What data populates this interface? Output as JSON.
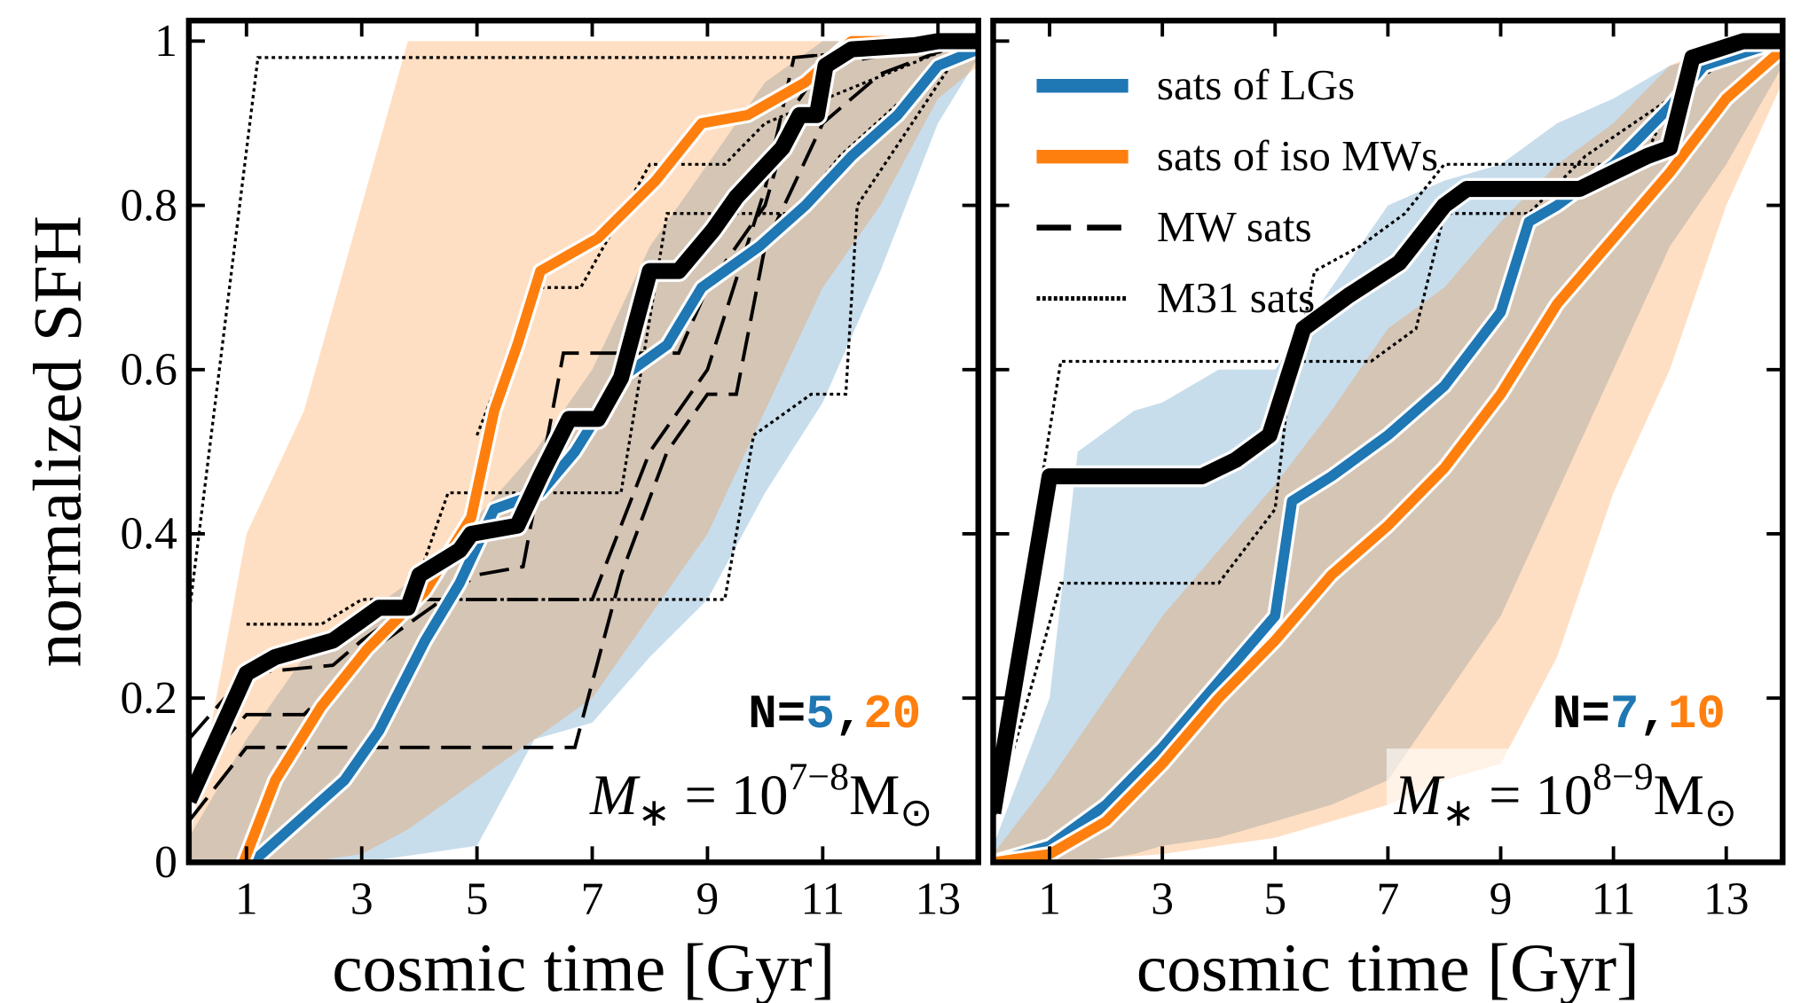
{
  "chart_data": [
    {
      "type": "line",
      "xlabel": "cosmic time [Gyr]",
      "ylabel": "normalized SFH",
      "xlim": [
        0,
        13.7
      ],
      "ylim": [
        0,
        1.025
      ],
      "xticks": [
        1,
        3,
        5,
        7,
        9,
        11,
        13
      ],
      "yticks": [
        0,
        0.2,
        0.4,
        0.6,
        0.8,
        1
      ],
      "show_ytick_labels": true,
      "bands": [
        {
          "color": "#1f77b4",
          "x": [
            0,
            1,
            2,
            3,
            4,
            5,
            6,
            7,
            8,
            9,
            10,
            11,
            12,
            13,
            13.7
          ],
          "lower": [
            0,
            0,
            0,
            0,
            0.01,
            0.02,
            0.15,
            0.17,
            0.25,
            0.32,
            0.45,
            0.56,
            0.72,
            0.9,
            0.98
          ],
          "upper": [
            0.03,
            0.15,
            0.25,
            0.3,
            0.35,
            0.42,
            0.5,
            0.6,
            0.75,
            0.85,
            0.95,
            1,
            1,
            1,
            1
          ]
        },
        {
          "color": "#ff7f0e",
          "x": [
            0,
            1,
            2,
            3,
            3.8,
            4,
            5,
            6,
            7,
            8,
            9,
            10,
            11,
            12,
            13,
            13.7
          ],
          "lower": [
            0,
            0,
            0,
            0.01,
            0.04,
            0.05,
            0.1,
            0.15,
            0.2,
            0.3,
            0.4,
            0.55,
            0.7,
            0.8,
            0.93,
            0.97
          ],
          "upper": [
            0.02,
            0.4,
            0.55,
            0.8,
            1,
            1,
            1,
            1,
            1,
            1,
            1,
            1,
            1,
            1,
            1,
            1
          ]
        }
      ],
      "series": [
        {
          "name": "MW sats",
          "color": "#000000",
          "dash": "dashed",
          "lines": [
            {
              "x": [
                0,
                1,
                6.7,
                7.5,
                8.3,
                9,
                9.5,
                10,
                11,
                12,
                13.5
              ],
              "values": [
                0.05,
                0.14,
                0.14,
                0.35,
                0.5,
                0.57,
                0.57,
                0.75,
                0.9,
                0.96,
                1
              ]
            },
            {
              "x": [
                0,
                1,
                2,
                3,
                4,
                5,
                5.8,
                6.5,
                8.5,
                9,
                10,
                10.5,
                11,
                13.5
              ],
              "values": [
                0.1,
                0.18,
                0.18,
                0.25,
                0.3,
                0.35,
                0.36,
                0.62,
                0.62,
                0.7,
                0.8,
                0.92,
                0.97,
                1
              ]
            },
            {
              "x": [
                0,
                1,
                2.5,
                3,
                4,
                7,
                8,
                9,
                10,
                10.5,
                13.5
              ],
              "values": [
                0.15,
                0.23,
                0.24,
                0.27,
                0.32,
                0.32,
                0.5,
                0.6,
                0.82,
                0.98,
                1
              ]
            }
          ]
        },
        {
          "name": "M31 sats",
          "color": "#000000",
          "dash": "dotted",
          "lines": [
            {
              "x": [
                0,
                1.2,
                10.5,
                13.5
              ],
              "values": [
                0.3,
                0.98,
                0.98,
                1
              ]
            },
            {
              "x": [
                1,
                2.3,
                3,
                9.3,
                9.8,
                10.8,
                11.4,
                11.6,
                13.5
              ],
              "values": [
                0.29,
                0.29,
                0.32,
                0.32,
                0.52,
                0.57,
                0.57,
                0.8,
                1
              ]
            },
            {
              "x": [
                4,
                4.5,
                7.5,
                8.3,
                10.5,
                11.3,
                13.5
              ],
              "values": [
                0.35,
                0.45,
                0.45,
                0.79,
                0.79,
                0.86,
                1
              ]
            },
            {
              "x": [
                5,
                6,
                6.8,
                8,
                9.3,
                10,
                13.5
              ],
              "values": [
                0.52,
                0.7,
                0.7,
                0.85,
                0.85,
                0.9,
                1
              ]
            }
          ]
        },
        {
          "name": "sats of LGs",
          "color": "#1f77b4",
          "x": [
            1.1,
            1.9,
            2.7,
            3.3,
            4.1,
            4.7,
            5.3,
            6.1,
            6.7,
            7.5,
            8.3,
            8.9,
            9.9,
            10.7,
            11.5,
            12.3,
            13,
            13.7
          ],
          "values": [
            0,
            0.05,
            0.1,
            0.16,
            0.27,
            0.34,
            0.43,
            0.45,
            0.5,
            0.59,
            0.63,
            0.7,
            0.75,
            0.8,
            0.86,
            0.91,
            0.97,
            0.99
          ]
        },
        {
          "name": "sats of iso MWs",
          "color": "#ff7f0e",
          "x": [
            0.95,
            1.5,
            2.3,
            3.1,
            4.1,
            4.9,
            5.3,
            5.7,
            6.1,
            7.1,
            8.1,
            8.9,
            9.7,
            10.7,
            11.5,
            13.7
          ],
          "values": [
            0,
            0.1,
            0.19,
            0.26,
            0.33,
            0.42,
            0.55,
            0.63,
            0.72,
            0.76,
            0.83,
            0.9,
            0.91,
            0.95,
            1,
            1
          ]
        },
        {
          "color": "#000000",
          "x": [
            0,
            1,
            1.5,
            2.5,
            2.9,
            3.3,
            3.8,
            4,
            4.7,
            4.9,
            5.7,
            6.1,
            6.6,
            7.1,
            7.5,
            8,
            8.5,
            9.1,
            9.5,
            9.9,
            10.3,
            10.6,
            10.9,
            11.05,
            11.5,
            12.6,
            13,
            13.7
          ],
          "values": [
            0.075,
            0.23,
            0.25,
            0.27,
            0.29,
            0.31,
            0.31,
            0.35,
            0.38,
            0.4,
            0.41,
            0.47,
            0.54,
            0.54,
            0.59,
            0.72,
            0.72,
            0.77,
            0.81,
            0.84,
            0.87,
            0.91,
            0.91,
            0.97,
            0.99,
            0.995,
            1,
            1
          ]
        }
      ],
      "count_label": {
        "prefix": "N=",
        "separator": ",",
        "counts": [
          5,
          20
        ]
      },
      "mass_label": [
        "M",
        "∗",
        " = 10",
        "7−8",
        "M",
        "⊙"
      ]
    },
    {
      "type": "line",
      "xlabel": "cosmic time [Gyr]",
      "xlim": [
        0,
        14
      ],
      "ylim": [
        0,
        1.025
      ],
      "xticks": [
        1,
        3,
        5,
        7,
        9,
        11,
        13
      ],
      "yticks": [
        0,
        0.2,
        0.4,
        0.6,
        0.8,
        1
      ],
      "show_ytick_labels": false,
      "legend": "upper left",
      "bands": [
        {
          "color": "#1f77b4",
          "x": [
            0,
            1,
            1.5,
            2.5,
            3,
            4,
            5,
            6,
            7,
            8,
            9,
            10,
            11,
            12,
            13,
            14
          ],
          "lower": [
            0,
            0,
            0,
            0.01,
            0.02,
            0.03,
            0.05,
            0.07,
            0.1,
            0.2,
            0.3,
            0.45,
            0.6,
            0.75,
            0.85,
            0.97
          ],
          "upper": [
            0.02,
            0.2,
            0.5,
            0.55,
            0.56,
            0.6,
            0.6,
            0.7,
            0.8,
            0.83,
            0.85,
            0.9,
            0.93,
            0.97,
            0.99,
            1
          ]
        },
        {
          "color": "#ff7f0e",
          "x": [
            0,
            1,
            2,
            3,
            4,
            5,
            6,
            7,
            8,
            9,
            10,
            11,
            12,
            13,
            14
          ],
          "lower": [
            0,
            0,
            0.005,
            0.01,
            0.02,
            0.03,
            0.05,
            0.07,
            0.1,
            0.12,
            0.25,
            0.45,
            0.6,
            0.8,
            0.95
          ],
          "upper": [
            0.01,
            0.1,
            0.2,
            0.3,
            0.38,
            0.46,
            0.55,
            0.65,
            0.7,
            0.78,
            0.85,
            0.9,
            0.97,
            1,
            1
          ]
        }
      ],
      "series": [
        {
          "name": "MW sats",
          "color": "#000000",
          "dash": "dashed",
          "lines": []
        },
        {
          "name": "M31 sats",
          "color": "#000000",
          "dash": "dotted",
          "lines": [
            {
              "x": [
                0,
                1.2,
                6.7,
                7.5,
                8,
                9.5,
                10.5,
                13.5
              ],
              "values": [
                0.1,
                0.61,
                0.61,
                0.65,
                0.79,
                0.79,
                0.86,
                1
              ]
            },
            {
              "x": [
                0,
                1.2,
                4,
                5,
                5.2,
                5.7,
                6.5,
                7.3,
                8,
                11.5,
                12.3,
                14
              ],
              "values": [
                0.05,
                0.34,
                0.34,
                0.43,
                0.55,
                0.72,
                0.75,
                0.79,
                0.85,
                0.85,
                0.97,
                1
              ]
            }
          ]
        },
        {
          "name": "sats of LGs",
          "color": "#1f77b4",
          "x": [
            0,
            1,
            2,
            3,
            4,
            5,
            5.3,
            6,
            7,
            8,
            9,
            9.5,
            10,
            11,
            12,
            12.6,
            13.5,
            14
          ],
          "values": [
            0,
            0.02,
            0.07,
            0.14,
            0.22,
            0.3,
            0.44,
            0.47,
            0.52,
            0.58,
            0.67,
            0.78,
            0.8,
            0.85,
            0.92,
            0.97,
            0.99,
            1
          ]
        },
        {
          "name": "sats of iso MWs",
          "color": "#ff7f0e",
          "x": [
            0,
            1,
            2,
            3,
            4,
            5,
            6,
            7,
            8,
            9,
            10,
            11,
            12,
            13,
            14
          ],
          "values": [
            0,
            0.01,
            0.05,
            0.12,
            0.2,
            0.27,
            0.35,
            0.41,
            0.48,
            0.57,
            0.68,
            0.76,
            0.84,
            0.93,
            0.99
          ]
        },
        {
          "color": "#000000",
          "x": [
            0,
            1,
            3.7,
            4.3,
            4.9,
            5.5,
            6.3,
            7.2,
            8,
            8.4,
            10.4,
            11,
            11.6,
            12,
            12.4,
            13.3,
            14
          ],
          "values": [
            0.06,
            0.47,
            0.47,
            0.49,
            0.52,
            0.65,
            0.69,
            0.73,
            0.8,
            0.82,
            0.82,
            0.84,
            0.86,
            0.87,
            0.98,
            1,
            1
          ]
        }
      ],
      "count_label": {
        "prefix": "N=",
        "separator": ",",
        "counts": [
          7,
          10
        ]
      },
      "mass_label": [
        "M",
        "∗",
        " = 10",
        "8−9",
        "M",
        "⊙"
      ]
    }
  ]
}
